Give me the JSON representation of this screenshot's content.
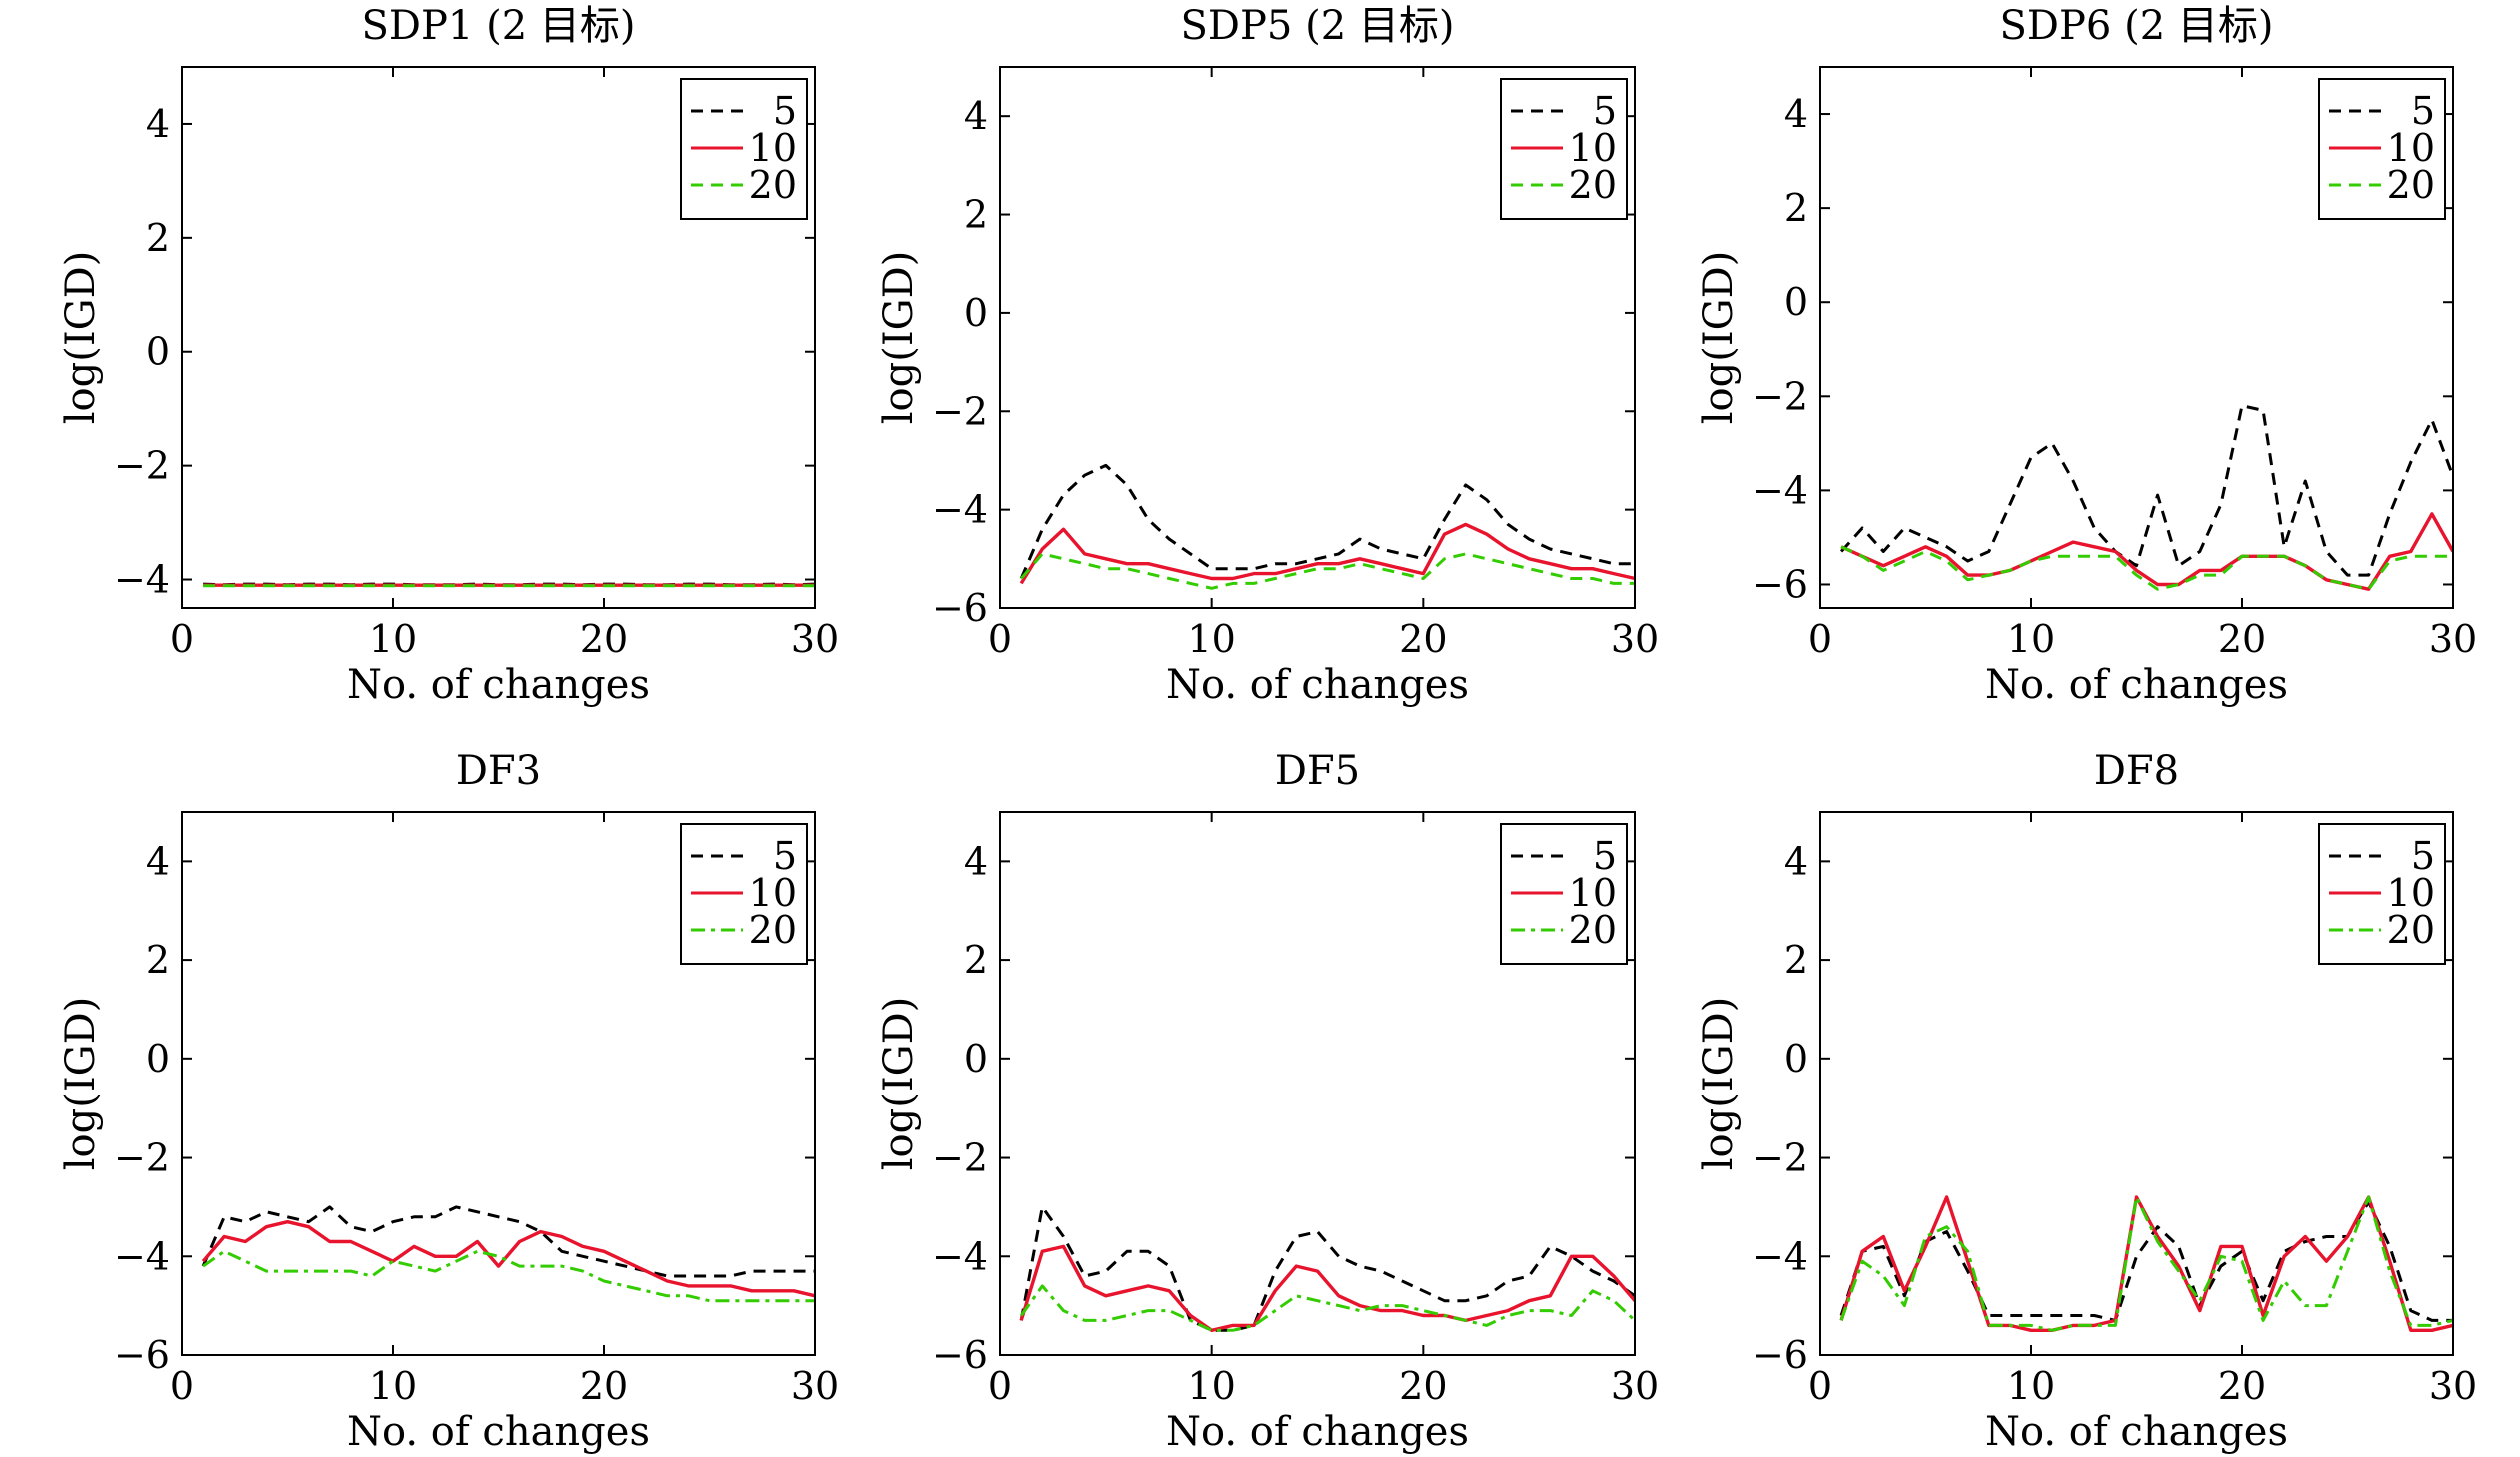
{
  "chart_data": [
    {
      "type": "line",
      "title": "SDP1 (2 目标)",
      "xlabel": "No. of changes",
      "ylabel": "log(IGD)",
      "xlim": [
        0,
        30
      ],
      "ylim": [
        -4.5,
        5
      ],
      "xticks": [
        "0",
        "10",
        "20",
        "30"
      ],
      "yticks": [
        "−4",
        "−2",
        "0",
        "2",
        "4"
      ],
      "legend": "top-right",
      "series": [
        {
          "name": "5",
          "color": "#000000",
          "dash": "dashed",
          "values": [
            -4.08,
            -4.09,
            -4.08,
            -4.08,
            -4.09,
            -4.08,
            -4.08,
            -4.09,
            -4.08,
            -4.08,
            -4.09,
            -4.09,
            -4.09,
            -4.08,
            -4.09,
            -4.09,
            -4.08,
            -4.08,
            -4.09,
            -4.08,
            -4.08,
            -4.09,
            -4.09,
            -4.08,
            -4.08,
            -4.09,
            -4.09,
            -4.08,
            -4.09,
            -4.08
          ]
        },
        {
          "name": "10",
          "color": "#e8132c",
          "dash": "solid",
          "values": [
            -4.1,
            -4.1,
            -4.1,
            -4.1,
            -4.1,
            -4.1,
            -4.1,
            -4.1,
            -4.1,
            -4.1,
            -4.1,
            -4.1,
            -4.1,
            -4.1,
            -4.1,
            -4.1,
            -4.1,
            -4.1,
            -4.1,
            -4.1,
            -4.1,
            -4.1,
            -4.1,
            -4.1,
            -4.1,
            -4.1,
            -4.1,
            -4.1,
            -4.1,
            -4.1
          ]
        },
        {
          "name": "20",
          "color": "#33cc00",
          "dash": "dashed",
          "values": [
            -4.11,
            -4.11,
            -4.11,
            -4.11,
            -4.11,
            -4.11,
            -4.11,
            -4.11,
            -4.11,
            -4.11,
            -4.11,
            -4.11,
            -4.11,
            -4.11,
            -4.11,
            -4.11,
            -4.11,
            -4.11,
            -4.11,
            -4.11,
            -4.11,
            -4.11,
            -4.11,
            -4.11,
            -4.11,
            -4.11,
            -4.11,
            -4.11,
            -4.11,
            -4.11
          ]
        }
      ]
    },
    {
      "type": "line",
      "title": "SDP5 (2 目标)",
      "xlabel": "No. of changes",
      "ylabel": "log(IGD)",
      "xlim": [
        0,
        30
      ],
      "ylim": [
        -6,
        5
      ],
      "xticks": [
        "0",
        "10",
        "20",
        "30"
      ],
      "yticks": [
        "−6",
        "−4",
        "−2",
        "0",
        "2",
        "4"
      ],
      "legend": "top-right",
      "series": [
        {
          "name": "5",
          "color": "#000000",
          "dash": "dashed",
          "values": [
            -5.4,
            -4.4,
            -3.7,
            -3.3,
            -3.1,
            -3.5,
            -4.2,
            -4.6,
            -4.9,
            -5.2,
            -5.2,
            -5.2,
            -5.1,
            -5.1,
            -5.0,
            -4.9,
            -4.6,
            -4.8,
            -4.9,
            -5.0,
            -4.2,
            -3.5,
            -3.8,
            -4.3,
            -4.6,
            -4.8,
            -4.9,
            -5.0,
            -5.1,
            -5.1
          ]
        },
        {
          "name": "10",
          "color": "#e8132c",
          "dash": "solid",
          "values": [
            -5.5,
            -4.8,
            -4.4,
            -4.9,
            -5.0,
            -5.1,
            -5.1,
            -5.2,
            -5.3,
            -5.4,
            -5.4,
            -5.3,
            -5.3,
            -5.2,
            -5.1,
            -5.1,
            -5.0,
            -5.1,
            -5.2,
            -5.3,
            -4.5,
            -4.3,
            -4.5,
            -4.8,
            -5.0,
            -5.1,
            -5.2,
            -5.2,
            -5.3,
            -5.4
          ]
        },
        {
          "name": "20",
          "color": "#33cc00",
          "dash": "dashed",
          "values": [
            -5.4,
            -4.9,
            -5.0,
            -5.1,
            -5.2,
            -5.2,
            -5.3,
            -5.4,
            -5.5,
            -5.6,
            -5.5,
            -5.5,
            -5.4,
            -5.3,
            -5.2,
            -5.2,
            -5.1,
            -5.2,
            -5.3,
            -5.4,
            -5.0,
            -4.9,
            -5.0,
            -5.1,
            -5.2,
            -5.3,
            -5.4,
            -5.4,
            -5.5,
            -5.5
          ]
        }
      ]
    },
    {
      "type": "line",
      "title": "SDP6 (2 目标)",
      "xlabel": "No. of changes",
      "ylabel": "log(IGD)",
      "xlim": [
        0,
        30
      ],
      "ylim": [
        -6.5,
        5
      ],
      "xticks": [
        "0",
        "10",
        "20",
        "30"
      ],
      "yticks": [
        "−6",
        "−4",
        "−2",
        "0",
        "2",
        "4"
      ],
      "legend": "top-right",
      "series": [
        {
          "name": "5",
          "color": "#000000",
          "dash": "dashed",
          "values": [
            -5.3,
            -4.8,
            -5.3,
            -4.8,
            -5.0,
            -5.2,
            -5.5,
            -5.3,
            -4.3,
            -3.3,
            -3.0,
            -3.8,
            -4.8,
            -5.3,
            -5.6,
            -4.1,
            -5.6,
            -5.3,
            -4.3,
            -2.2,
            -2.3,
            -5.2,
            -3.8,
            -5.3,
            -5.8,
            -5.8,
            -4.5,
            -3.4,
            -2.5,
            -3.7
          ]
        },
        {
          "name": "10",
          "color": "#e8132c",
          "dash": "solid",
          "values": [
            -5.2,
            -5.4,
            -5.6,
            -5.4,
            -5.2,
            -5.4,
            -5.8,
            -5.8,
            -5.7,
            -5.5,
            -5.3,
            -5.1,
            -5.2,
            -5.3,
            -5.7,
            -6.0,
            -6.0,
            -5.7,
            -5.7,
            -5.4,
            -5.4,
            -5.4,
            -5.6,
            -5.9,
            -6.0,
            -6.1,
            -5.4,
            -5.3,
            -4.5,
            -5.3
          ]
        },
        {
          "name": "20",
          "color": "#33cc00",
          "dash": "dashed",
          "values": [
            -5.2,
            -5.4,
            -5.7,
            -5.5,
            -5.3,
            -5.5,
            -5.9,
            -5.8,
            -5.7,
            -5.5,
            -5.4,
            -5.4,
            -5.4,
            -5.4,
            -5.8,
            -6.1,
            -6.0,
            -5.8,
            -5.8,
            -5.4,
            -5.4,
            -5.4,
            -5.6,
            -5.9,
            -6.0,
            -6.1,
            -5.5,
            -5.4,
            -5.4,
            -5.4
          ]
        }
      ]
    },
    {
      "type": "line",
      "title": "DF3",
      "xlabel": "No. of changes",
      "ylabel": "log(IGD)",
      "xlim": [
        0,
        30
      ],
      "ylim": [
        -6,
        5
      ],
      "xticks": [
        "0",
        "10",
        "20",
        "30"
      ],
      "yticks": [
        "−6",
        "−4",
        "−2",
        "0",
        "2",
        "4"
      ],
      "legend": "top-right",
      "series": [
        {
          "name": "5",
          "color": "#000000",
          "dash": "dashed",
          "values": [
            -4.2,
            -3.2,
            -3.3,
            -3.1,
            -3.2,
            -3.3,
            -3.0,
            -3.4,
            -3.5,
            -3.3,
            -3.2,
            -3.2,
            -3.0,
            -3.1,
            -3.2,
            -3.3,
            -3.5,
            -3.9,
            -4.0,
            -4.1,
            -4.2,
            -4.3,
            -4.4,
            -4.4,
            -4.4,
            -4.4,
            -4.3,
            -4.3,
            -4.3,
            -4.3
          ]
        },
        {
          "name": "10",
          "color": "#e8132c",
          "dash": "solid",
          "values": [
            -4.1,
            -3.6,
            -3.7,
            -3.4,
            -3.3,
            -3.4,
            -3.7,
            -3.7,
            -3.9,
            -4.1,
            -3.8,
            -4.0,
            -4.0,
            -3.7,
            -4.2,
            -3.7,
            -3.5,
            -3.6,
            -3.8,
            -3.9,
            -4.1,
            -4.3,
            -4.5,
            -4.6,
            -4.6,
            -4.6,
            -4.7,
            -4.7,
            -4.7,
            -4.8
          ]
        },
        {
          "name": "20",
          "color": "#33cc00",
          "dash": "dashdot",
          "values": [
            -4.2,
            -3.9,
            -4.1,
            -4.3,
            -4.3,
            -4.3,
            -4.3,
            -4.3,
            -4.4,
            -4.1,
            -4.2,
            -4.3,
            -4.1,
            -3.9,
            -4.0,
            -4.2,
            -4.2,
            -4.2,
            -4.3,
            -4.5,
            -4.6,
            -4.7,
            -4.8,
            -4.8,
            -4.9,
            -4.9,
            -4.9,
            -4.9,
            -4.9,
            -4.9
          ]
        }
      ]
    },
    {
      "type": "line",
      "title": "DF5",
      "xlabel": "No. of changes",
      "ylabel": "log(IGD)",
      "xlim": [
        0,
        30
      ],
      "ylim": [
        -6,
        5
      ],
      "xticks": [
        "0",
        "10",
        "20",
        "30"
      ],
      "yticks": [
        "−6",
        "−4",
        "−2",
        "0",
        "2",
        "4"
      ],
      "legend": "top-right",
      "series": [
        {
          "name": "5",
          "color": "#000000",
          "dash": "dashed",
          "values": [
            -5.3,
            -3.0,
            -3.6,
            -4.4,
            -4.3,
            -3.9,
            -3.9,
            -4.2,
            -5.3,
            -5.5,
            -5.5,
            -5.4,
            -4.3,
            -3.6,
            -3.5,
            -4.0,
            -4.2,
            -4.3,
            -4.5,
            -4.7,
            -4.9,
            -4.9,
            -4.8,
            -4.5,
            -4.4,
            -3.8,
            -4.0,
            -4.3,
            -4.5,
            -4.8
          ]
        },
        {
          "name": "10",
          "color": "#e8132c",
          "dash": "solid",
          "values": [
            -5.3,
            -3.9,
            -3.8,
            -4.6,
            -4.8,
            -4.7,
            -4.6,
            -4.7,
            -5.2,
            -5.5,
            -5.4,
            -5.4,
            -4.7,
            -4.2,
            -4.3,
            -4.8,
            -5.0,
            -5.1,
            -5.1,
            -5.2,
            -5.2,
            -5.3,
            -5.2,
            -5.1,
            -4.9,
            -4.8,
            -4.0,
            -4.0,
            -4.4,
            -4.9
          ]
        },
        {
          "name": "20",
          "color": "#33cc00",
          "dash": "dashdot",
          "values": [
            -5.2,
            -4.6,
            -5.1,
            -5.3,
            -5.3,
            -5.2,
            -5.1,
            -5.1,
            -5.3,
            -5.5,
            -5.5,
            -5.4,
            -5.1,
            -4.8,
            -4.9,
            -5.0,
            -5.1,
            -5.0,
            -5.0,
            -5.1,
            -5.2,
            -5.3,
            -5.4,
            -5.2,
            -5.1,
            -5.1,
            -5.2,
            -4.7,
            -4.9,
            -5.3
          ]
        }
      ]
    },
    {
      "type": "line",
      "title": "DF8",
      "xlabel": "No. of changes",
      "ylabel": "log(IGD)",
      "xlim": [
        0,
        30
      ],
      "ylim": [
        -6,
        5
      ],
      "xticks": [
        "0",
        "10",
        "20",
        "30"
      ],
      "yticks": [
        "−6",
        "−4",
        "−2",
        "0",
        "2",
        "4"
      ],
      "legend": "top-right",
      "series": [
        {
          "name": "5",
          "color": "#000000",
          "dash": "dashed",
          "values": [
            -5.2,
            -3.9,
            -3.8,
            -4.8,
            -3.7,
            -3.5,
            -4.3,
            -5.2,
            -5.2,
            -5.2,
            -5.2,
            -5.2,
            -5.2,
            -5.3,
            -4.0,
            -3.4,
            -3.8,
            -5.0,
            -4.2,
            -3.9,
            -4.9,
            -3.9,
            -3.7,
            -3.6,
            -3.6,
            -2.9,
            -3.8,
            -5.1,
            -5.3,
            -5.3
          ]
        },
        {
          "name": "10",
          "color": "#e8132c",
          "dash": "solid",
          "values": [
            -5.3,
            -3.9,
            -3.6,
            -4.7,
            -3.8,
            -2.8,
            -4.1,
            -5.4,
            -5.4,
            -5.5,
            -5.5,
            -5.4,
            -5.4,
            -5.3,
            -2.8,
            -3.6,
            -4.2,
            -5.1,
            -3.8,
            -3.8,
            -5.2,
            -4.0,
            -3.6,
            -4.1,
            -3.6,
            -2.8,
            -4.1,
            -5.5,
            -5.5,
            -5.4
          ]
        },
        {
          "name": "20",
          "color": "#33cc00",
          "dash": "dashdot",
          "values": [
            -5.3,
            -4.1,
            -4.4,
            -5.0,
            -3.6,
            -3.4,
            -3.9,
            -5.4,
            -5.4,
            -5.4,
            -5.5,
            -5.4,
            -5.4,
            -5.4,
            -2.8,
            -3.7,
            -4.3,
            -4.9,
            -4.0,
            -4.1,
            -5.3,
            -4.5,
            -5.0,
            -5.0,
            -3.9,
            -2.8,
            -4.3,
            -5.4,
            -5.4,
            -5.3
          ]
        }
      ]
    }
  ]
}
